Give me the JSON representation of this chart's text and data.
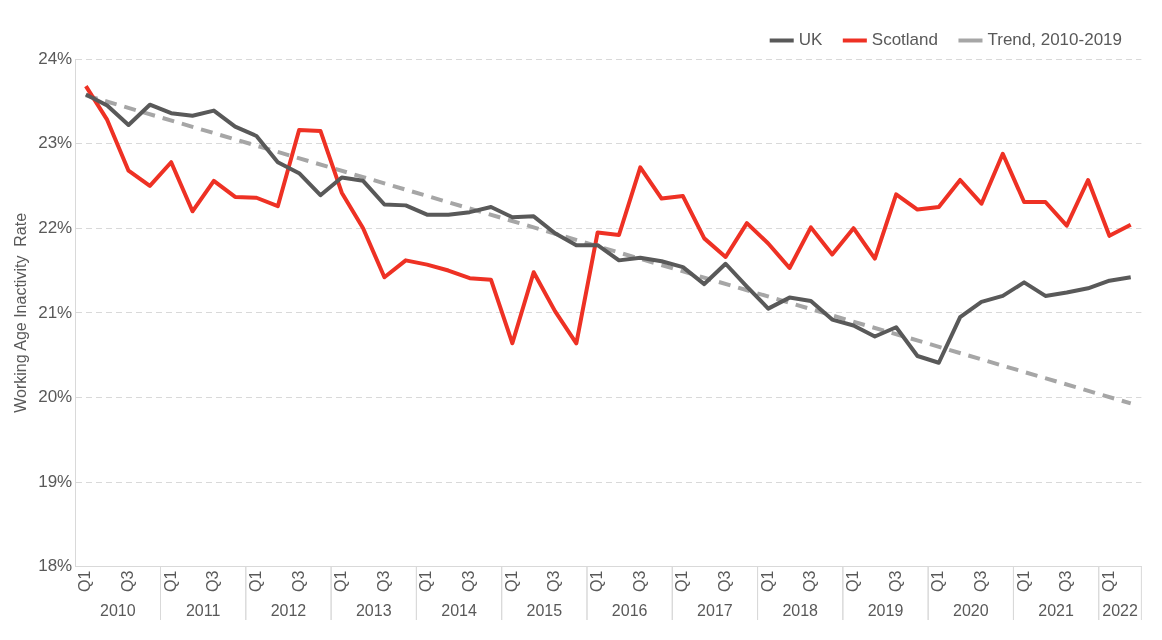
{
  "chart_data": {
    "type": "line",
    "ylabel": "Working Age Inactivity  Rate",
    "categories": [
      "Q1",
      null,
      "Q3",
      null,
      "Q1",
      null,
      "Q3",
      null,
      "Q1",
      null,
      "Q3",
      null,
      "Q1",
      null,
      "Q3",
      null,
      "Q1",
      null,
      "Q3",
      null,
      "Q1",
      null,
      "Q3",
      null,
      "Q1",
      null,
      "Q3",
      null,
      "Q1",
      null,
      "Q3",
      null,
      "Q1",
      null,
      "Q3",
      null,
      "Q1",
      null,
      "Q3",
      null,
      "Q1",
      null,
      "Q3",
      null,
      "Q1",
      null,
      "Q3",
      null,
      "Q1",
      null
    ],
    "annotations": [
      "2010",
      "2011",
      "2012",
      "2013",
      "2014",
      "2015",
      "2016",
      "2017",
      "2018",
      "2019",
      "2020",
      "2021",
      "2022"
    ],
    "series": [
      {
        "name": "UK",
        "color": "#595959",
        "values": [
          23.58,
          23.45,
          23.22,
          23.46,
          23.36,
          23.33,
          23.39,
          23.2,
          23.09,
          22.78,
          22.65,
          22.39,
          22.6,
          22.56,
          22.28,
          22.27,
          22.16,
          22.16,
          22.19,
          22.25,
          22.13,
          22.14,
          21.94,
          21.8,
          21.8,
          21.62,
          21.65,
          21.61,
          21.54,
          21.34,
          21.58,
          21.31,
          21.05,
          21.18,
          21.14,
          20.92,
          20.85,
          20.72,
          20.83,
          20.49,
          20.41,
          20.95,
          21.13,
          21.2,
          21.36,
          21.2,
          21.24,
          21.29,
          21.38,
          21.42
        ]
      },
      {
        "name": "Scotland",
        "color": "#ee3124",
        "values": [
          23.68,
          23.28,
          22.68,
          22.5,
          22.78,
          22.2,
          22.56,
          22.37,
          22.36,
          22.26,
          23.16,
          23.15,
          22.42,
          22.0,
          21.42,
          21.62,
          21.57,
          21.5,
          21.41,
          21.39,
          20.64,
          21.48,
          21.02,
          20.64,
          21.95,
          21.92,
          22.72,
          22.35,
          22.38,
          21.88,
          21.66,
          22.06,
          21.82,
          21.53,
          22.01,
          21.69,
          22.0,
          21.64,
          22.4,
          22.22,
          22.25,
          22.57,
          22.29,
          22.88,
          22.31,
          22.31,
          22.03,
          22.57,
          21.91,
          22.04
        ]
      },
      {
        "name": "Trend, 2010-2019",
        "color": "#a6a6a6",
        "line_style": "dashed",
        "values": [
          23.57,
          null,
          null,
          null,
          null,
          null,
          null,
          null,
          null,
          null,
          null,
          null,
          null,
          null,
          null,
          null,
          null,
          null,
          null,
          null,
          null,
          null,
          null,
          null,
          null,
          null,
          null,
          null,
          null,
          null,
          null,
          null,
          null,
          null,
          null,
          null,
          null,
          null,
          null,
          null,
          null,
          null,
          null,
          null,
          null,
          null,
          null,
          null,
          null,
          19.93
        ]
      }
    ],
    "ylim": [
      18,
      24
    ],
    "yticks": [
      {
        "value": 18,
        "label": "18%"
      },
      {
        "value": 19,
        "label": "19%"
      },
      {
        "value": 20,
        "label": "20%"
      },
      {
        "value": 21,
        "label": "21%"
      },
      {
        "value": 22,
        "label": "22%"
      },
      {
        "value": 23,
        "label": "23%"
      },
      {
        "value": 24,
        "label": "24%"
      }
    ],
    "grid": "y",
    "legend": "top right",
    "marker": "none",
    "line_style": "solid"
  }
}
